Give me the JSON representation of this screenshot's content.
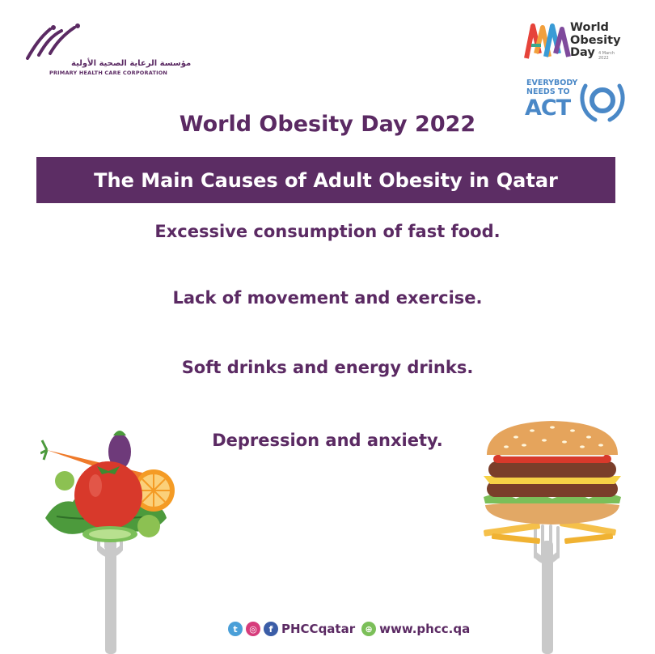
{
  "phcc": {
    "name_ar": "مؤسسة الرعاية الصحية الأولية",
    "name_en": "PRIMARY HEALTH CARE CORPORATION"
  },
  "wod_logo": {
    "text": "World Obesity Day",
    "date": "4 March 2022"
  },
  "act_logo": {
    "line1": "EVERYBODY",
    "line2": "NEEDS TO",
    "big": "ACT"
  },
  "title": "World Obesity Day 2022",
  "banner": "The Main Causes of Adult Obesity in Qatar",
  "causes": [
    "Excessive consumption of fast food.",
    "Lack of movement and exercise.",
    "Soft drinks and energy drinks.",
    "Depression and anxiety."
  ],
  "footer": {
    "handle": "PHCCqatar",
    "website": "www.phcc.qa",
    "icons": [
      "twitter-icon",
      "instagram-icon",
      "facebook-icon",
      "globe-icon"
    ]
  },
  "colors": {
    "brand_purple": "#5c2d64",
    "act_blue": "#4a88c7",
    "background": "#ffffff"
  }
}
